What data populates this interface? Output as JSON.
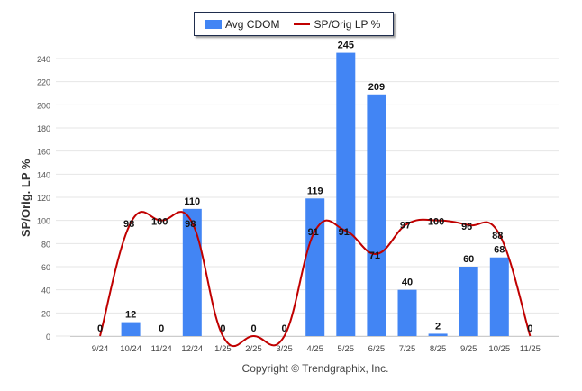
{
  "chart_data": {
    "type": "bar",
    "categories": [
      "9/24",
      "10/24",
      "11/24",
      "12/24",
      "1/25",
      "2/25",
      "3/25",
      "4/25",
      "5/25",
      "6/25",
      "7/25",
      "8/25",
      "9/25",
      "10/25",
      "11/25"
    ],
    "series": [
      {
        "name": "Avg CDOM",
        "type": "bar",
        "color": "#4285f4",
        "values": [
          0,
          12,
          0,
          110,
          0,
          0,
          0,
          119,
          245,
          209,
          40,
          2,
          60,
          68,
          0
        ]
      },
      {
        "name": "SP/Orig LP %",
        "type": "line",
        "color": "#c00000",
        "values": [
          0,
          98,
          100,
          98,
          0,
          0,
          0,
          91,
          91,
          71,
          97,
          100,
          96,
          88,
          0
        ]
      }
    ],
    "ylabel": "SP/Orig. LP %",
    "xlabel": "",
    "ylim": [
      0,
      240
    ],
    "yticks": [
      0,
      20,
      40,
      60,
      80,
      100,
      120,
      140,
      160,
      180,
      200,
      220,
      240
    ],
    "grid": true,
    "legend_position": "top-center",
    "footer": "Copyright © Trendgraphix, Inc."
  }
}
